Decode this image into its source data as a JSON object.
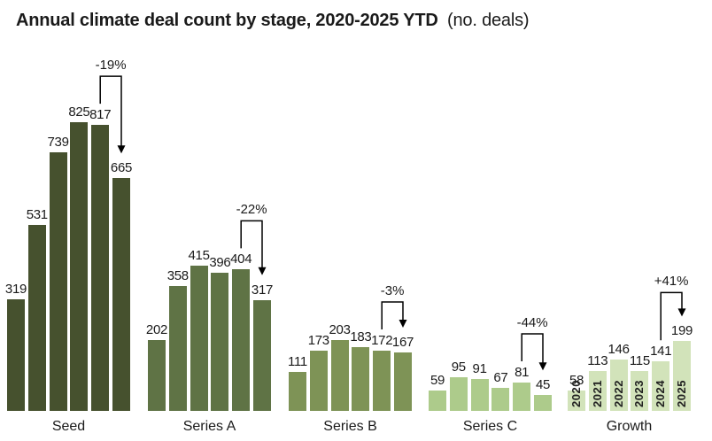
{
  "title": {
    "main": "Annual climate deal count by stage, 2020-2025 YTD",
    "unit": "(no. deals)"
  },
  "colors": {
    "background": "#ffffff",
    "text": "#1a1a1a",
    "annotation": "#000000"
  },
  "chart_data": {
    "type": "bar",
    "title": "Annual climate deal count by stage, 2020-2025 YTD",
    "unit_note": "(no. deals)",
    "x_years": [
      "2020",
      "2021",
      "2022",
      "2023",
      "2024",
      "2025"
    ],
    "ylim": [
      0,
      850
    ],
    "grid": false,
    "legend": null,
    "value_labels": true,
    "groups": [
      {
        "label": "Seed",
        "color": "#46512e",
        "values": [
          319,
          531,
          739,
          825,
          817,
          665
        ],
        "change": "-19%",
        "year_labels_in_bars": false
      },
      {
        "label": "Series A",
        "color": "#5f7345",
        "values": [
          202,
          358,
          415,
          396,
          404,
          317
        ],
        "change": "-22%",
        "year_labels_in_bars": false
      },
      {
        "label": "Series B",
        "color": "#7e9356",
        "values": [
          111,
          173,
          203,
          183,
          172,
          167
        ],
        "change": "-3%",
        "year_labels_in_bars": false
      },
      {
        "label": "Series C",
        "color": "#adcb8b",
        "values": [
          59,
          95,
          91,
          67,
          81,
          45
        ],
        "change": "-44%",
        "year_labels_in_bars": false
      },
      {
        "label": "Growth",
        "color": "#d2e3ba",
        "values": [
          58,
          113,
          146,
          115,
          141,
          199
        ],
        "change": "+41%",
        "year_labels_in_bars": true
      }
    ]
  }
}
